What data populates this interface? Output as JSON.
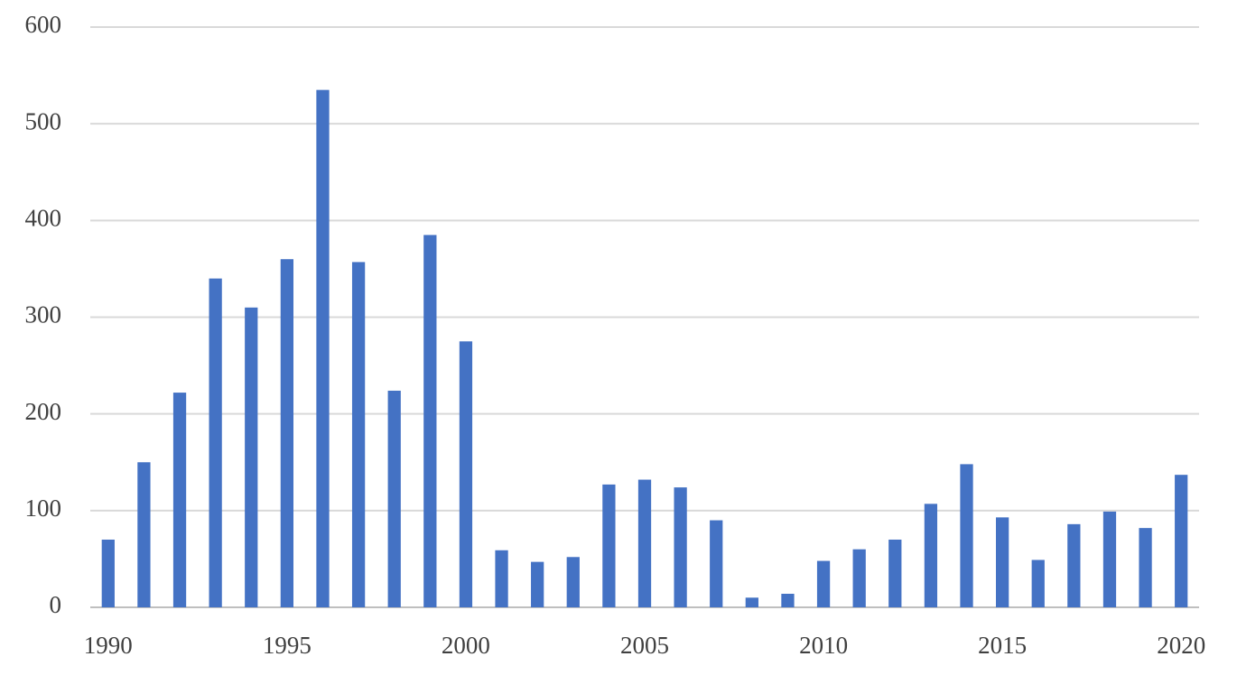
{
  "chart_data": {
    "type": "bar",
    "categories": [
      "1990",
      null,
      null,
      null,
      null,
      "1995",
      null,
      null,
      null,
      null,
      "2000",
      null,
      null,
      null,
      null,
      "2005",
      null,
      null,
      null,
      null,
      "2010",
      null,
      null,
      null,
      null,
      "2015",
      null,
      null,
      null,
      null,
      "2020"
    ],
    "values": [
      70,
      150,
      222,
      340,
      310,
      360,
      535,
      357,
      224,
      385,
      275,
      59,
      47,
      52,
      127,
      132,
      124,
      90,
      10,
      14,
      48,
      60,
      70,
      107,
      148,
      93,
      49,
      86,
      99,
      82,
      137
    ],
    "color": "#4472c4",
    "ylim": [
      0,
      600
    ],
    "yticks": [
      0,
      100,
      200,
      300,
      400,
      500,
      600
    ],
    "grid": true
  }
}
